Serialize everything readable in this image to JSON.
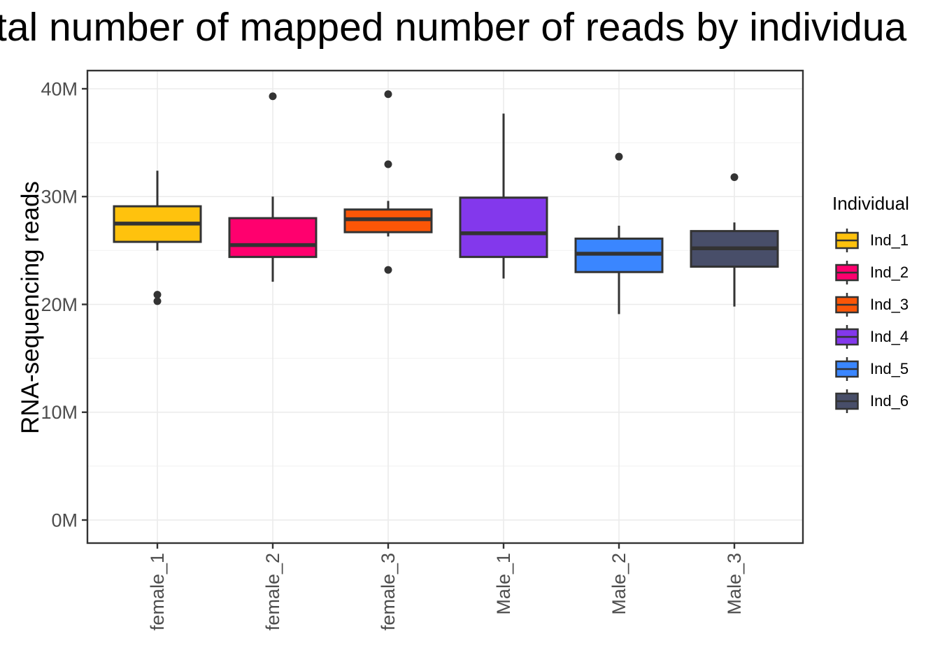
{
  "chart_data": {
    "type": "boxplot",
    "title_visible": "tal number of mapped number of reads by individua",
    "ylabel": "RNA-sequencing reads",
    "value_unit": "million reads",
    "y_ticks": [
      {
        "value": 0,
        "label": "0M"
      },
      {
        "value": 10,
        "label": "10M"
      },
      {
        "value": 20,
        "label": "20M"
      },
      {
        "value": 30,
        "label": "30M"
      },
      {
        "value": 40,
        "label": "40M"
      }
    ],
    "y_minor_ticks": [
      5,
      15,
      25,
      35
    ],
    "ylim": [
      -2.1,
      41.7
    ],
    "grid": true,
    "categories": [
      "female_1",
      "female_2",
      "female_3",
      "Male_1",
      "Male_2",
      "Male_3"
    ],
    "series": [
      {
        "category": "female_1",
        "legend_label": "Ind_1",
        "color": "#FFC20D",
        "stats": {
          "whisker_low": 25.0,
          "q1": 25.8,
          "median": 27.5,
          "q3": 29.1,
          "whisker_high": 32.4
        },
        "outliers": [
          20.9,
          20.3
        ]
      },
      {
        "category": "female_2",
        "legend_label": "Ind_2",
        "color": "#FF006E",
        "stats": {
          "whisker_low": 22.1,
          "q1": 24.4,
          "median": 25.5,
          "q3": 28.0,
          "whisker_high": 30.0
        },
        "outliers": [
          39.3
        ]
      },
      {
        "category": "female_3",
        "legend_label": "Ind_3",
        "color": "#FB5607",
        "stats": {
          "whisker_low": 26.3,
          "q1": 26.7,
          "median": 27.9,
          "q3": 28.8,
          "whisker_high": 29.6
        },
        "outliers": [
          39.5,
          33.0,
          23.2
        ]
      },
      {
        "category": "Male_1",
        "legend_label": "Ind_4",
        "color": "#8338EC",
        "stats": {
          "whisker_low": 22.4,
          "q1": 24.4,
          "median": 26.6,
          "q3": 29.9,
          "whisker_high": 37.7
        },
        "outliers": []
      },
      {
        "category": "Male_2",
        "legend_label": "Ind_5",
        "color": "#3A86FF",
        "stats": {
          "whisker_low": 19.1,
          "q1": 23.0,
          "median": 24.7,
          "q3": 26.1,
          "whisker_high": 27.3
        },
        "outliers": [
          33.7
        ]
      },
      {
        "category": "Male_3",
        "legend_label": "Ind_6",
        "color": "#484E69",
        "stats": {
          "whisker_low": 19.8,
          "q1": 23.5,
          "median": 25.2,
          "q3": 26.8,
          "whisker_high": 27.6
        },
        "outliers": [
          31.8
        ]
      }
    ],
    "legend": {
      "title": "Individual",
      "position": "right"
    }
  },
  "colors": {
    "box_stroke": "#333333",
    "median_stroke": "#333333",
    "whisker_stroke": "#333333",
    "outlier": "#333333",
    "grid_major": "#EBEBEB",
    "grid_minor": "#F4F4F4",
    "panel_border": "#333333",
    "axis_text": "#4D4D4D",
    "title_text": "#000000"
  }
}
